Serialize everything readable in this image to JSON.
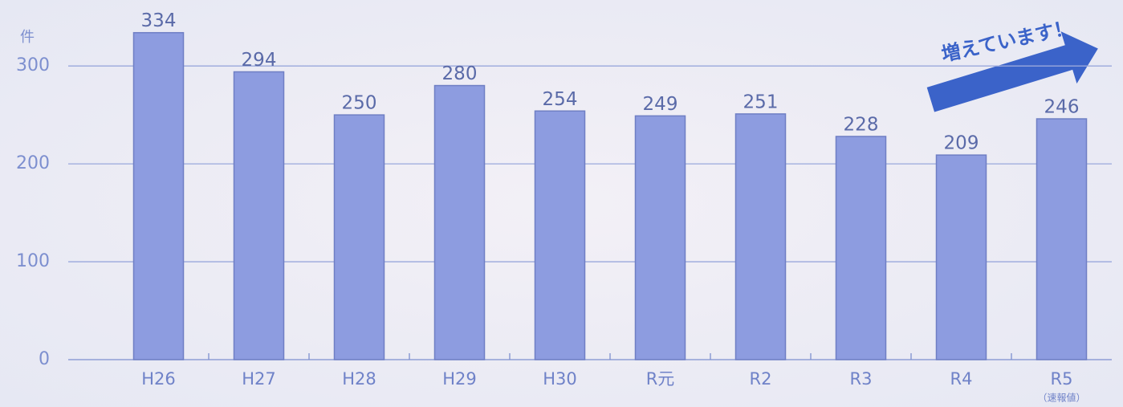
{
  "chart_data": {
    "type": "bar",
    "y_unit": "件",
    "annotation": "増えています！",
    "categories": [
      "H26",
      "H27",
      "H28",
      "H29",
      "H30",
      "R元",
      "R2",
      "R3",
      "R4",
      "R5"
    ],
    "category_sublabels": [
      null,
      null,
      null,
      null,
      null,
      null,
      null,
      null,
      null,
      "（速報値）"
    ],
    "values": [
      334,
      294,
      250,
      280,
      254,
      249,
      251,
      228,
      209,
      246
    ],
    "color": "#8d9ce0",
    "ylim": [
      0,
      360
    ],
    "yticks": [
      0,
      100,
      200,
      300
    ],
    "grid": true
  }
}
